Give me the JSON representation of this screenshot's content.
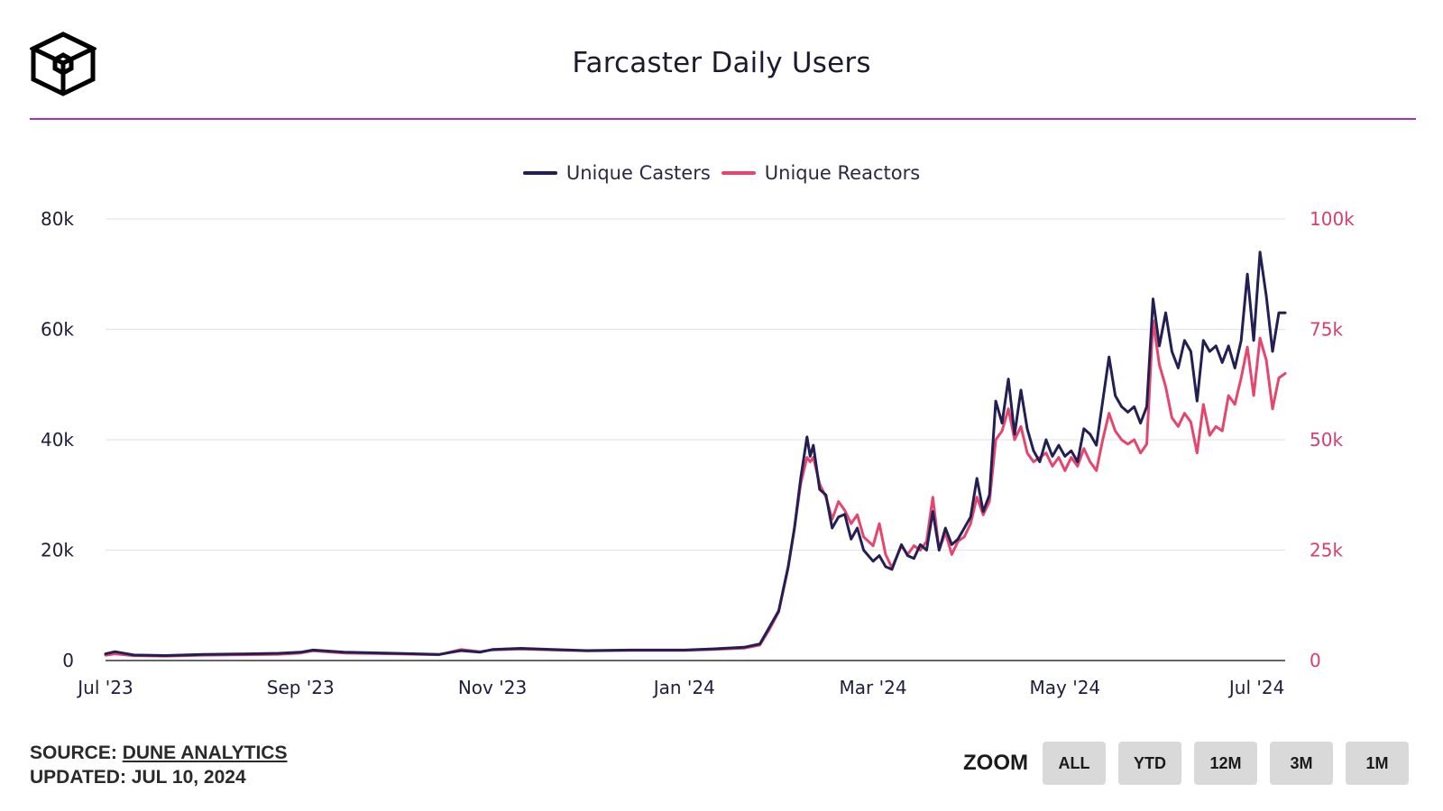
{
  "header": {
    "title": "Farcaster Daily Users",
    "logo_icon": "cube-logo-icon"
  },
  "colors": {
    "divider": "#a52ed1",
    "casters": "#221f53",
    "reactors": "#e5466f"
  },
  "footer": {
    "source_prefix": "SOURCE:",
    "source_link": "DUNE ANALYTICS",
    "updated": "UPDATED: JUL 10, 2024"
  },
  "zoom": {
    "label": "ZOOM",
    "buttons": [
      "ALL",
      "YTD",
      "12M",
      "3M",
      "1M"
    ]
  },
  "chart_data": {
    "type": "line",
    "title": "Farcaster Daily Users",
    "legend": "top-center",
    "grid": true,
    "x_range": [
      "2023-07-01",
      "2024-07-10"
    ],
    "x_ticks": [
      "Jul '23",
      "Sep '23",
      "Nov '23",
      "Jan '24",
      "Mar '24",
      "May '24",
      "Jul '24"
    ],
    "y_left": {
      "ticks": [
        "0",
        "20k",
        "40k",
        "60k",
        "80k"
      ],
      "range": [
        0,
        80000
      ]
    },
    "y_right": {
      "ticks": [
        "0",
        "25k",
        "50k",
        "75k",
        "100k"
      ],
      "range": [
        0,
        100000
      ]
    },
    "series": [
      {
        "name": "Unique Casters",
        "axis": "left",
        "color": "#221f53",
        "points": [
          [
            "2023-07-01",
            1200
          ],
          [
            "2023-07-04",
            1600
          ],
          [
            "2023-07-10",
            1000
          ],
          [
            "2023-07-20",
            900
          ],
          [
            "2023-08-01",
            1100
          ],
          [
            "2023-08-15",
            1200
          ],
          [
            "2023-08-25",
            1300
          ],
          [
            "2023-09-01",
            1500
          ],
          [
            "2023-09-05",
            1900
          ],
          [
            "2023-09-15",
            1500
          ],
          [
            "2023-10-01",
            1300
          ],
          [
            "2023-10-15",
            1100
          ],
          [
            "2023-10-22",
            1800
          ],
          [
            "2023-10-28",
            1500
          ],
          [
            "2023-11-01",
            2000
          ],
          [
            "2023-11-10",
            2200
          ],
          [
            "2023-11-20",
            2000
          ],
          [
            "2023-12-01",
            1800
          ],
          [
            "2023-12-15",
            1900
          ],
          [
            "2024-01-01",
            1900
          ],
          [
            "2024-01-10",
            2100
          ],
          [
            "2024-01-20",
            2400
          ],
          [
            "2024-01-25",
            3000
          ],
          [
            "2024-01-28",
            6000
          ],
          [
            "2024-01-31",
            9000
          ],
          [
            "2024-02-03",
            17000
          ],
          [
            "2024-02-05",
            24000
          ],
          [
            "2024-02-07",
            33000
          ],
          [
            "2024-02-09",
            40500
          ],
          [
            "2024-02-10",
            37000
          ],
          [
            "2024-02-11",
            39000
          ],
          [
            "2024-02-13",
            31000
          ],
          [
            "2024-02-15",
            30000
          ],
          [
            "2024-02-17",
            24000
          ],
          [
            "2024-02-19",
            26000
          ],
          [
            "2024-02-21",
            26500
          ],
          [
            "2024-02-23",
            22000
          ],
          [
            "2024-02-25",
            24000
          ],
          [
            "2024-02-27",
            20000
          ],
          [
            "2024-03-01",
            18000
          ],
          [
            "2024-03-03",
            19000
          ],
          [
            "2024-03-05",
            17000
          ],
          [
            "2024-03-07",
            16500
          ],
          [
            "2024-03-10",
            21000
          ],
          [
            "2024-03-12",
            19000
          ],
          [
            "2024-03-14",
            18500
          ],
          [
            "2024-03-16",
            21000
          ],
          [
            "2024-03-18",
            20000
          ],
          [
            "2024-03-20",
            27000
          ],
          [
            "2024-03-22",
            20000
          ],
          [
            "2024-03-24",
            24000
          ],
          [
            "2024-03-26",
            21000
          ],
          [
            "2024-03-28",
            22000
          ],
          [
            "2024-03-30",
            24000
          ],
          [
            "2024-04-01",
            26000
          ],
          [
            "2024-04-03",
            33000
          ],
          [
            "2024-04-05",
            27000
          ],
          [
            "2024-04-07",
            30000
          ],
          [
            "2024-04-09",
            47000
          ],
          [
            "2024-04-11",
            43000
          ],
          [
            "2024-04-13",
            51000
          ],
          [
            "2024-04-15",
            41000
          ],
          [
            "2024-04-17",
            49000
          ],
          [
            "2024-04-19",
            42000
          ],
          [
            "2024-04-21",
            38000
          ],
          [
            "2024-04-23",
            36000
          ],
          [
            "2024-04-25",
            40000
          ],
          [
            "2024-04-27",
            37000
          ],
          [
            "2024-04-29",
            39000
          ],
          [
            "2024-05-01",
            37000
          ],
          [
            "2024-05-03",
            38000
          ],
          [
            "2024-05-05",
            36000
          ],
          [
            "2024-05-07",
            42000
          ],
          [
            "2024-05-09",
            41000
          ],
          [
            "2024-05-11",
            39000
          ],
          [
            "2024-05-13",
            47000
          ],
          [
            "2024-05-15",
            55000
          ],
          [
            "2024-05-17",
            48000
          ],
          [
            "2024-05-19",
            46000
          ],
          [
            "2024-05-21",
            45000
          ],
          [
            "2024-05-23",
            46000
          ],
          [
            "2024-05-25",
            43000
          ],
          [
            "2024-05-27",
            46000
          ],
          [
            "2024-05-29",
            65500
          ],
          [
            "2024-05-31",
            57000
          ],
          [
            "2024-06-02",
            63000
          ],
          [
            "2024-06-04",
            56000
          ],
          [
            "2024-06-06",
            53000
          ],
          [
            "2024-06-08",
            58000
          ],
          [
            "2024-06-10",
            56000
          ],
          [
            "2024-06-12",
            47000
          ],
          [
            "2024-06-14",
            58000
          ],
          [
            "2024-06-16",
            56000
          ],
          [
            "2024-06-18",
            57000
          ],
          [
            "2024-06-20",
            54000
          ],
          [
            "2024-06-22",
            57000
          ],
          [
            "2024-06-24",
            53000
          ],
          [
            "2024-06-26",
            58000
          ],
          [
            "2024-06-28",
            70000
          ],
          [
            "2024-06-30",
            58000
          ],
          [
            "2024-07-02",
            74000
          ],
          [
            "2024-07-04",
            66000
          ],
          [
            "2024-07-06",
            56000
          ],
          [
            "2024-07-08",
            63000
          ],
          [
            "2024-07-10",
            63000
          ]
        ]
      },
      {
        "name": "Unique Reactors",
        "axis": "right",
        "color": "#e5466f",
        "points": [
          [
            "2023-07-01",
            1200
          ],
          [
            "2023-07-04",
            1500
          ],
          [
            "2023-07-10",
            1100
          ],
          [
            "2023-07-20",
            1000
          ],
          [
            "2023-08-01",
            1200
          ],
          [
            "2023-08-15",
            1300
          ],
          [
            "2023-08-25",
            1400
          ],
          [
            "2023-09-01",
            1700
          ],
          [
            "2023-09-05",
            2200
          ],
          [
            "2023-09-15",
            1700
          ],
          [
            "2023-10-01",
            1500
          ],
          [
            "2023-10-15",
            1300
          ],
          [
            "2023-10-22",
            2500
          ],
          [
            "2023-10-28",
            2000
          ],
          [
            "2023-11-01",
            2400
          ],
          [
            "2023-11-10",
            2600
          ],
          [
            "2023-11-20",
            2400
          ],
          [
            "2023-12-01",
            2200
          ],
          [
            "2023-12-15",
            2300
          ],
          [
            "2024-01-01",
            2300
          ],
          [
            "2024-01-10",
            2500
          ],
          [
            "2024-01-20",
            2800
          ],
          [
            "2024-01-25",
            3500
          ],
          [
            "2024-01-28",
            7000
          ],
          [
            "2024-01-31",
            11000
          ],
          [
            "2024-02-03",
            21000
          ],
          [
            "2024-02-05",
            30000
          ],
          [
            "2024-02-07",
            40000
          ],
          [
            "2024-02-09",
            46000
          ],
          [
            "2024-02-10",
            45000
          ],
          [
            "2024-02-11",
            46000
          ],
          [
            "2024-02-13",
            40000
          ],
          [
            "2024-02-15",
            37000
          ],
          [
            "2024-02-17",
            32000
          ],
          [
            "2024-02-19",
            36000
          ],
          [
            "2024-02-21",
            34000
          ],
          [
            "2024-02-23",
            31000
          ],
          [
            "2024-02-25",
            33000
          ],
          [
            "2024-02-27",
            28000
          ],
          [
            "2024-03-01",
            26000
          ],
          [
            "2024-03-03",
            31000
          ],
          [
            "2024-03-05",
            24000
          ],
          [
            "2024-03-07",
            21000
          ],
          [
            "2024-03-10",
            26000
          ],
          [
            "2024-03-12",
            24000
          ],
          [
            "2024-03-14",
            26000
          ],
          [
            "2024-03-16",
            25000
          ],
          [
            "2024-03-18",
            27000
          ],
          [
            "2024-03-20",
            37000
          ],
          [
            "2024-03-22",
            25000
          ],
          [
            "2024-03-24",
            29000
          ],
          [
            "2024-03-26",
            24000
          ],
          [
            "2024-03-28",
            27000
          ],
          [
            "2024-03-30",
            28000
          ],
          [
            "2024-04-01",
            31000
          ],
          [
            "2024-04-03",
            37000
          ],
          [
            "2024-04-05",
            33000
          ],
          [
            "2024-04-07",
            36000
          ],
          [
            "2024-04-09",
            50000
          ],
          [
            "2024-04-11",
            52000
          ],
          [
            "2024-04-13",
            57000
          ],
          [
            "2024-04-15",
            50000
          ],
          [
            "2024-04-17",
            53000
          ],
          [
            "2024-04-19",
            47000
          ],
          [
            "2024-04-21",
            45000
          ],
          [
            "2024-04-23",
            46000
          ],
          [
            "2024-04-25",
            47000
          ],
          [
            "2024-04-27",
            44000
          ],
          [
            "2024-04-29",
            46000
          ],
          [
            "2024-05-01",
            43000
          ],
          [
            "2024-05-03",
            46000
          ],
          [
            "2024-05-05",
            44000
          ],
          [
            "2024-05-07",
            48000
          ],
          [
            "2024-05-09",
            45000
          ],
          [
            "2024-05-11",
            43000
          ],
          [
            "2024-05-13",
            50000
          ],
          [
            "2024-05-15",
            56000
          ],
          [
            "2024-05-17",
            52000
          ],
          [
            "2024-05-19",
            50000
          ],
          [
            "2024-05-21",
            49000
          ],
          [
            "2024-05-23",
            50000
          ],
          [
            "2024-05-25",
            47000
          ],
          [
            "2024-05-27",
            49000
          ],
          [
            "2024-05-29",
            77000
          ],
          [
            "2024-05-31",
            67000
          ],
          [
            "2024-06-02",
            62000
          ],
          [
            "2024-06-04",
            55000
          ],
          [
            "2024-06-06",
            53000
          ],
          [
            "2024-06-08",
            56000
          ],
          [
            "2024-06-10",
            54000
          ],
          [
            "2024-06-12",
            47000
          ],
          [
            "2024-06-14",
            58000
          ],
          [
            "2024-06-16",
            51000
          ],
          [
            "2024-06-18",
            53000
          ],
          [
            "2024-06-20",
            52000
          ],
          [
            "2024-06-22",
            60000
          ],
          [
            "2024-06-24",
            58000
          ],
          [
            "2024-06-26",
            64000
          ],
          [
            "2024-06-28",
            71000
          ],
          [
            "2024-06-30",
            60000
          ],
          [
            "2024-07-02",
            73000
          ],
          [
            "2024-07-04",
            68000
          ],
          [
            "2024-07-06",
            57000
          ],
          [
            "2024-07-08",
            64000
          ],
          [
            "2024-07-10",
            65000
          ]
        ]
      }
    ]
  }
}
